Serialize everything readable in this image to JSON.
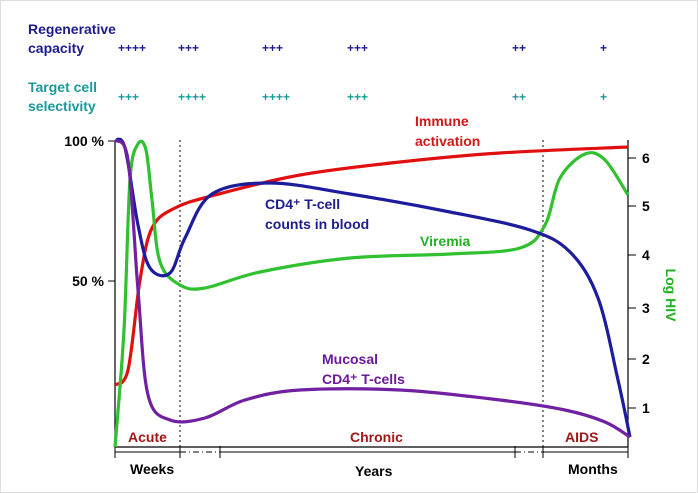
{
  "rows": {
    "regenerative": {
      "label": [
        "Regenerative",
        "capacity"
      ],
      "marks": [
        "++++",
        "+++",
        "+++",
        "+++",
        "++",
        "+"
      ]
    },
    "selectivity": {
      "label": [
        "Target cell",
        "selectivity"
      ],
      "marks": [
        "+++",
        "++++",
        "++++",
        "+++",
        "++",
        "+"
      ]
    }
  },
  "left_axis": {
    "ticks": [
      "100 %",
      "50 %"
    ]
  },
  "right_axis": {
    "label": "Log HIV",
    "ticks": [
      "6",
      "5",
      "4",
      "3",
      "2",
      "1"
    ]
  },
  "curves": {
    "immune": [
      "Immune",
      "activation"
    ],
    "cd4_blood": [
      "CD4⁺ T-cell",
      "counts in blood"
    ],
    "viremia": "Viremia",
    "mucosal": [
      "Mucosal",
      "CD4⁺ T-cells"
    ]
  },
  "phases": [
    "Acute",
    "Chronic",
    "AIDS"
  ],
  "time_units": [
    "Weeks",
    "Years",
    "Months"
  ]
}
